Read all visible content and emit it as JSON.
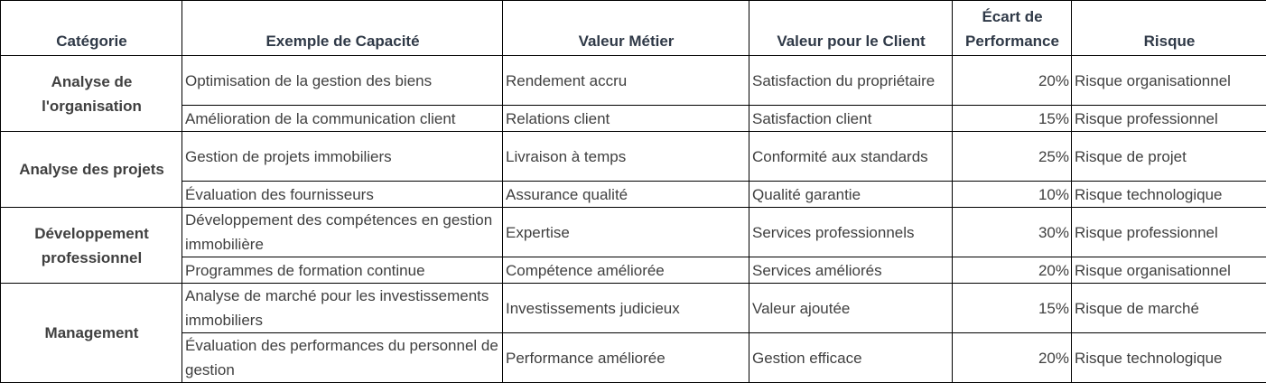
{
  "headers": {
    "category": "Catégorie",
    "capability": "Exemple de Capacité",
    "business_value": "Valeur Métier",
    "client_value": "Valeur pour le Client",
    "gap": "Écart de Performance",
    "risk": "Risque"
  },
  "groups": [
    {
      "category": "Analyse de l'organisation",
      "rows": [
        {
          "capability": "Optimisation de la gestion des biens",
          "business_value": "Rendement accru",
          "client_value": "Satisfaction du propriétaire",
          "gap": "20%",
          "risk": "Risque organisationnel"
        },
        {
          "capability": "Amélioration de la communication client",
          "business_value": "Relations client",
          "client_value": "Satisfaction client",
          "gap": "15%",
          "risk": "Risque professionnel"
        }
      ]
    },
    {
      "category": "Analyse des projets",
      "rows": [
        {
          "capability": "Gestion de projets immobiliers",
          "business_value": "Livraison à temps",
          "client_value": "Conformité aux standards",
          "gap": "25%",
          "risk": "Risque de projet"
        },
        {
          "capability": "Évaluation des fournisseurs",
          "business_value": "Assurance qualité",
          "client_value": "Qualité garantie",
          "gap": "10%",
          "risk": "Risque technologique"
        }
      ]
    },
    {
      "category": "Développement professionnel",
      "rows": [
        {
          "capability": "Développement des compétences en gestion immobilière",
          "business_value": "Expertise",
          "client_value": "Services professionnels",
          "gap": "30%",
          "risk": "Risque professionnel"
        },
        {
          "capability": "Programmes de formation continue",
          "business_value": "Compétence améliorée",
          "client_value": "Services améliorés",
          "gap": "20%",
          "risk": "Risque organisationnel"
        }
      ]
    },
    {
      "category": "Management",
      "rows": [
        {
          "capability": "Analyse de marché pour les investissements immobiliers",
          "business_value": "Investissements judicieux",
          "client_value": "Valeur ajoutée",
          "gap": "15%",
          "risk": "Risque de marché"
        },
        {
          "capability": "Évaluation des performances du personnel de gestion",
          "business_value": "Performance améliorée",
          "client_value": "Gestion efficace",
          "gap": "20%",
          "risk": "Risque technologique"
        }
      ]
    }
  ]
}
